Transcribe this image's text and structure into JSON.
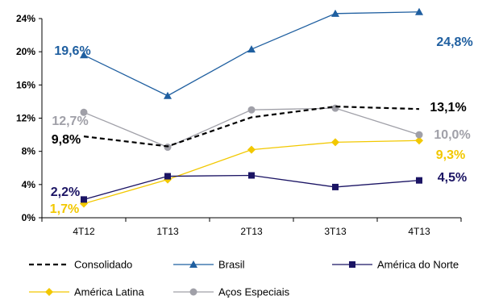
{
  "chart_data": {
    "type": "line",
    "categories": [
      "4T12",
      "1T13",
      "2T13",
      "3T13",
      "4T13"
    ],
    "ylim": [
      0,
      24
    ],
    "yticks": [
      "0%",
      "4%",
      "8%",
      "12%",
      "16%",
      "20%",
      "24%"
    ],
    "grid": false,
    "legend_position": "bottom",
    "series": [
      {
        "name": "Consolidado",
        "values": [
          9.8,
          8.6,
          12.1,
          13.4,
          13.1
        ],
        "color": "#000000",
        "dash": "dashed",
        "marker": "none"
      },
      {
        "name": "Brasil",
        "values": [
          19.6,
          14.7,
          20.3,
          24.6,
          24.8
        ],
        "color": "#1f5fa0",
        "dash": "solid",
        "marker": "triangle"
      },
      {
        "name": "América do Norte",
        "values": [
          2.2,
          5.0,
          5.1,
          3.7,
          4.5
        ],
        "color": "#1b1464",
        "dash": "solid",
        "marker": "square"
      },
      {
        "name": "América Latina",
        "values": [
          1.7,
          4.6,
          8.2,
          9.1,
          9.3
        ],
        "color": "#f2c800",
        "dash": "solid",
        "marker": "diamond"
      },
      {
        "name": "Aços Especiais",
        "values": [
          12.7,
          8.5,
          13.0,
          13.2,
          10.0
        ],
        "color": "#a0a0a8",
        "dash": "solid",
        "marker": "circle"
      }
    ],
    "data_labels": [
      {
        "text": "19,6%",
        "series": "Brasil",
        "color": "#1f5fa0"
      },
      {
        "text": "24,8%",
        "series": "Brasil",
        "color": "#1f5fa0"
      },
      {
        "text": "12,7%",
        "series": "Aços Especiais",
        "color": "#a0a0a8"
      },
      {
        "text": "10,0%",
        "series": "Aços Especiais",
        "color": "#a0a0a8"
      },
      {
        "text": "9,8%",
        "series": "Consolidado",
        "color": "#000000"
      },
      {
        "text": "13,1%",
        "series": "Consolidado",
        "color": "#000000"
      },
      {
        "text": "9,3%",
        "series": "América Latina",
        "color": "#f2c800"
      },
      {
        "text": "2,2%",
        "series": "América do Norte",
        "color": "#1b1464"
      },
      {
        "text": "4,5%",
        "series": "América do Norte",
        "color": "#1b1464"
      },
      {
        "text": "1,7%",
        "series": "América Latina",
        "color": "#f2c800"
      }
    ]
  }
}
